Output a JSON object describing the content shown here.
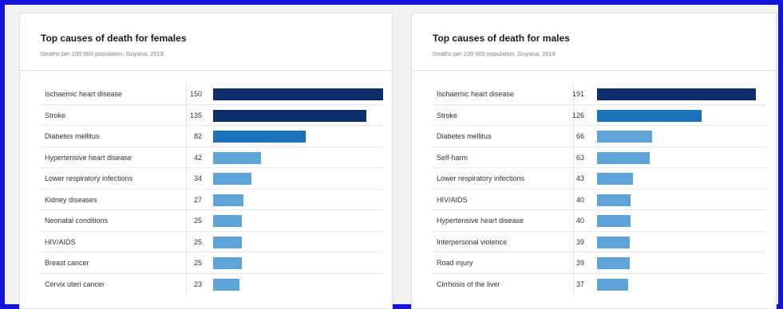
{
  "chart_data": [
    {
      "type": "bar",
      "orientation": "horizontal",
      "title": "Top causes of death for females",
      "subtitle": "Deaths per 100 000 population, Guyana, 2019",
      "categories": [
        "Ischaemic heart disease",
        "Stroke",
        "Diabetes mellitus",
        "Hypertensive heart disease",
        "Lower respiratory infections",
        "Kidney diseases",
        "Neonatal conditions",
        "HIV/AIDS",
        "Breast cancer",
        "Cervix uteri cancer"
      ],
      "values": [
        150,
        135,
        82,
        42,
        34,
        27,
        25,
        25,
        25,
        23
      ],
      "bar_colors": [
        "#0d2d6b",
        "#0d2d6b",
        "#1c73b9",
        "#5ea4d8",
        "#5ea4d8",
        "#5ea4d8",
        "#5ea4d8",
        "#5ea4d8",
        "#5ea4d8",
        "#5ea4d8"
      ],
      "xlim": [
        0,
        150
      ],
      "grid": false
    },
    {
      "type": "bar",
      "orientation": "horizontal",
      "title": "Top causes of death for males",
      "subtitle": "Deaths per 100 000 population, Guyana, 2019",
      "categories": [
        "Ischaemic heart disease",
        "Stroke",
        "Diabetes mellitus",
        "Self-harm",
        "Lower respiratory infections",
        "HIV/AIDS",
        "Hypertensive heart disease",
        "Interpersonal violence",
        "Road injury",
        "Cirrhosis of the liver"
      ],
      "values": [
        191,
        126,
        66,
        63,
        43,
        40,
        40,
        39,
        39,
        37
      ],
      "bar_colors": [
        "#0d2d6b",
        "#1c73b9",
        "#5ea4d8",
        "#5ea4d8",
        "#5ea4d8",
        "#5ea4d8",
        "#5ea4d8",
        "#5ea4d8",
        "#5ea4d8",
        "#5ea4d8"
      ],
      "xlim": [
        0,
        191
      ],
      "grid": false
    }
  ]
}
